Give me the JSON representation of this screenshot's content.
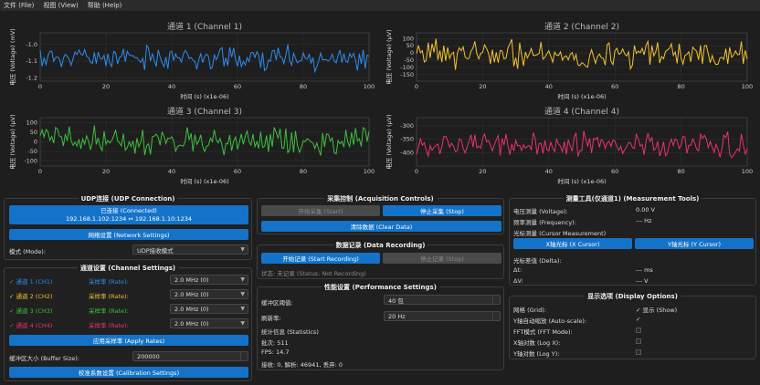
{
  "menu": {
    "file": "文件 (File)",
    "view": "视图 (View)",
    "help": "帮助 (Help)"
  },
  "colors": {
    "ch1": "#2d8cf0",
    "ch2": "#f2c230",
    "ch3": "#3fbf3f",
    "ch4": "#e8336f",
    "accent": "#1473c8"
  },
  "chart_data": [
    {
      "type": "line",
      "title": "通道 1 (Channel 1)",
      "xlabel": "时间 (s) (x1e-06)",
      "ylabel": "电压 (Voltage) (mV)",
      "xlim": [
        0,
        100
      ],
      "ylim": [
        -1.22,
        -0.93
      ],
      "xticks": [
        "0",
        "20",
        "40",
        "60",
        "80",
        "100"
      ],
      "yticks": [
        "-1.0",
        "-1.1",
        "-1.2"
      ],
      "ytickvals": [
        -1.0,
        -1.1,
        -1.2
      ],
      "color": "#2d8cf0",
      "seed": 11,
      "center": -1.08,
      "amp": 0.085
    },
    {
      "type": "line",
      "title": "通道 2 (Channel 2)",
      "xlabel": "时间 (s) (x1e-06)",
      "ylabel": "电压 (Voltage) (μV)",
      "xlim": [
        0,
        100
      ],
      "ylim": [
        -195,
        140
      ],
      "xticks": [
        "0",
        "20",
        "40",
        "60",
        "80",
        "100"
      ],
      "yticks": [
        "100",
        "50",
        "0",
        "-50",
        "-100",
        "-150"
      ],
      "ytickvals": [
        100,
        50,
        0,
        -50,
        -100,
        -150
      ],
      "color": "#f2c230",
      "seed": 23,
      "center": -10,
      "amp": 120
    },
    {
      "type": "line",
      "title": "通道 3 (Channel 3)",
      "xlabel": "时间 (s) (x1e-06)",
      "ylabel": "电压 (Voltage) (μV)",
      "xlim": [
        0,
        100
      ],
      "ylim": [
        -125,
        125
      ],
      "xticks": [
        "0",
        "20",
        "40",
        "60",
        "80",
        "100"
      ],
      "yticks": [
        "100",
        "50",
        "0",
        "-50",
        "-100"
      ],
      "ytickvals": [
        100,
        50,
        0,
        -50,
        -100
      ],
      "color": "#3fbf3f",
      "seed": 37,
      "center": 5,
      "amp": 85
    },
    {
      "type": "line",
      "title": "通道 4 (Channel 4)",
      "xlabel": "时间 (s) (x1e-06)",
      "ylabel": "电压 (Voltage) (μV)",
      "xlim": [
        0,
        100
      ],
      "ylim": [
        -450,
        -270
      ],
      "xticks": [
        "0",
        "20",
        "40",
        "60",
        "80",
        "100"
      ],
      "yticks": [
        "-300",
        "-350",
        "-400"
      ],
      "ytickvals": [
        -300,
        -350,
        -400
      ],
      "color": "#e8336f",
      "seed": 53,
      "center": -370,
      "amp": 55
    }
  ],
  "udp": {
    "title": "UDP连接 (UDP Connection)",
    "status_line1": "已连接 (Connected)",
    "status_line2": "192.168.1.102:1234 ↔ 192.168.1.10:1234",
    "network_btn": "网络设置 (Network Settings)",
    "mode_label": "模式 (Mode):",
    "mode_value": "UDP接收模式"
  },
  "channels": {
    "title": "通道设置 (Channel Settings)",
    "rows": [
      {
        "name": "通道 1 (CH1)",
        "rate_label": "采样率 (Rate):",
        "rate": "2.0 MHz (0)"
      },
      {
        "name": "通道 2 (CH2)",
        "rate_label": "采样率 (Rate):",
        "rate": "2.0 MHz (0)"
      },
      {
        "name": "通道 3 (CH3)",
        "rate_label": "采样率 (Rate):",
        "rate": "2.0 MHz (0)"
      },
      {
        "name": "通道 4 (CH4)",
        "rate_label": "采样率 (Rate):",
        "rate": "2.0 MHz (0)"
      }
    ],
    "apply_btn": "应用采样率 (Apply Rates)",
    "buffer_label": "缓冲区大小 (Buffer Size):",
    "buffer_value": "200000",
    "calib_btn": "校准系数设置 (Calibration Settings)"
  },
  "acq": {
    "title": "采集控制 (Acquisition Controls)",
    "start": "开始采集 (Start)",
    "stop": "停止采集 (Stop)",
    "clear": "清除数据 (Clear Data)"
  },
  "rec": {
    "title": "数据记录 (Data Recording)",
    "start": "开始记录 (Start Recording)",
    "stop": "停止记录 (Stop)",
    "status": "状态: 未记录 (Status: Not Recording)"
  },
  "perf": {
    "title": "性能设置 (Performance Settings)",
    "buf_label": "缓冲区阈值:",
    "buf_value": "40 包",
    "refresh_label": "刷新率:",
    "refresh_value": "20 Hz",
    "stats_title": "统计信息 (Statistics)",
    "batch": "批次: 511",
    "fps": "FPS: 14.7",
    "recv": "接收: 0, 解析: 46941, 丢弃: 0"
  },
  "meas": {
    "title": "测量工具(仅通道1) (Measurement Tools)",
    "volt_label": "电压测量 (Voltage):",
    "volt_value": "0.00 V",
    "freq_label": "频率测量 (Frequency):",
    "freq_value": "--- Hz",
    "cursor_label": "光标测量 (Cursor Measurement)",
    "xcur_btn": "X轴光标 (X Cursor)",
    "ycur_btn": "Y轴光标 (Y Cursor)",
    "delta_label": "光标差值 (Delta):",
    "dt_label": "Δt:",
    "dt_value": "--- ms",
    "dv_label": "ΔV:",
    "dv_value": "--- V"
  },
  "disp": {
    "title": "显示选项 (Display Options)",
    "grid_label": "网格 (Grid):",
    "grid_value": "显示 (Show)",
    "auto_label": "Y轴自动缩放 (Auto-scale):",
    "fft_label": "FFT模式 (FFT Mode):",
    "logx_label": "X轴对数 (Log X):",
    "logy_label": "Y轴对数 (Log Y):"
  }
}
